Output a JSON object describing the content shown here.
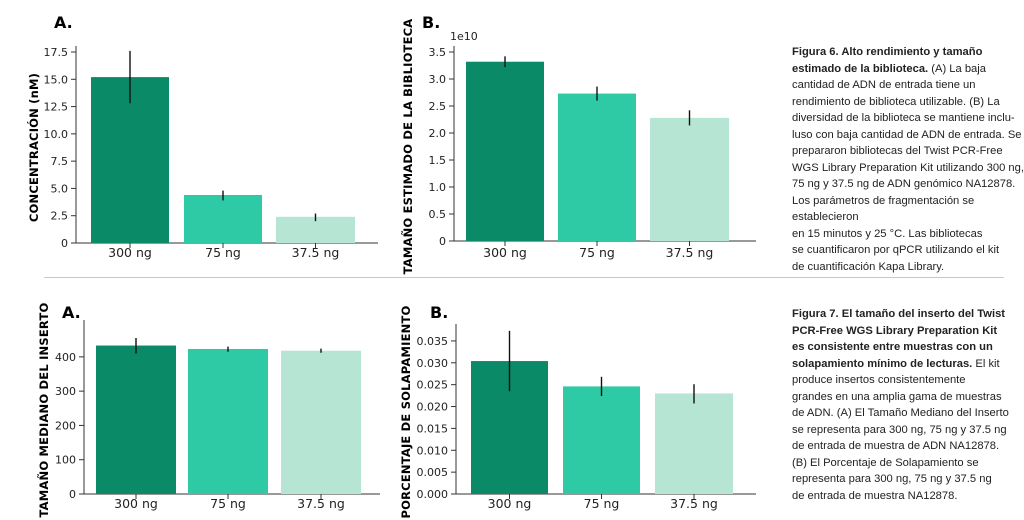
{
  "colors": {
    "bar1": "#0a8a67",
    "bar2": "#2ec9a5",
    "bar3": "#b6e6d3",
    "axis": "#333333",
    "error": "#111111"
  },
  "chart_data": [
    {
      "id": "fig6a",
      "type": "bar",
      "panel": "A.",
      "ylabel": "CONCENTRACIÓN (nM)",
      "categories": [
        "300 ng",
        "75 ng",
        "37.5 ng"
      ],
      "values": [
        15.2,
        4.4,
        2.4
      ],
      "errors": [
        [
          12.8,
          17.6
        ],
        [
          3.9,
          4.8
        ],
        [
          2.0,
          2.7
        ]
      ],
      "ylim": [
        0,
        17.5
      ],
      "yticks": [
        0,
        2.5,
        5.0,
        7.5,
        10.0,
        12.5,
        15.0,
        17.5
      ],
      "ytick_labels": [
        "0",
        "2.5",
        "5.0",
        "7.5",
        "10.0",
        "12.5",
        "15.0",
        "17.5"
      ]
    },
    {
      "id": "fig6b",
      "type": "bar",
      "panel": "B.",
      "ylabel": "TAMAÑO ESTIMADO DE LA BIBLIOTECA",
      "scale_note": "1e10",
      "categories": [
        "300 ng",
        "75 ng",
        "37.5 ng"
      ],
      "values": [
        3.32,
        2.73,
        2.28
      ],
      "errors": [
        [
          3.22,
          3.42
        ],
        [
          2.6,
          2.86
        ],
        [
          2.14,
          2.42
        ]
      ],
      "ylim": [
        0,
        3.5
      ],
      "yticks": [
        0,
        0.5,
        1.0,
        1.5,
        2.0,
        2.5,
        3.0,
        3.5
      ],
      "ytick_labels": [
        "0",
        "0.5",
        "1.0",
        "1.5",
        "2.0",
        "2.5",
        "3.0",
        "3.5"
      ]
    },
    {
      "id": "fig7a",
      "type": "bar",
      "panel": "A.",
      "ylabel": "TAMAÑO MEDIANO DEL INSERTO",
      "categories": [
        "300 ng",
        "75 ng",
        "37.5 ng"
      ],
      "values": [
        433,
        423,
        418
      ],
      "errors": [
        [
          410,
          455
        ],
        [
          415,
          430
        ],
        [
          412,
          424
        ]
      ],
      "ylim": [
        0,
        490
      ],
      "yticks": [
        0,
        100,
        200,
        300,
        400
      ],
      "ytick_labels": [
        "0",
        "100",
        "200",
        "300",
        "400"
      ]
    },
    {
      "id": "fig7b",
      "type": "bar",
      "panel": "B.",
      "ylabel": "PORCENTAJE DE SOLAPAMIENTO",
      "categories": [
        "300 ng",
        "75 ng",
        "37.5 ng"
      ],
      "values": [
        0.0304,
        0.0246,
        0.023
      ],
      "errors": [
        [
          0.0235,
          0.0373
        ],
        [
          0.0224,
          0.0268
        ],
        [
          0.0207,
          0.0251
        ]
      ],
      "ylim": [
        0,
        0.0375
      ],
      "yticks": [
        0,
        0.005,
        0.01,
        0.015,
        0.02,
        0.025,
        0.03,
        0.035
      ],
      "ytick_labels": [
        "0.000",
        "0.005",
        "0.010",
        "0.015",
        "0.020",
        "0.025",
        "0.030",
        "0.035"
      ]
    }
  ],
  "captions": {
    "fig6": {
      "bold": "Figura 6. Alto rendimiento y tamaño\nestimado de la biblioteca.",
      "text": " (A) La baja\ncantidad de ADN de entrada tiene un\nrendimiento de biblioteca utilizable. (B) La\ndiversidad de la biblioteca se mantiene inclu-\nluso  con baja cantidad de ADN de entrada. Se\nprepararon bibliotecas del Twist PCR-Free\nWGS Library Preparation Kit utilizando 300 ng,\n75 ng y 37.5 ng de ADN genómico NA12878.\nLos parámetros de fragmentación se establecieron\nen 15 minutos y 25 °C. Las bibliotecas\nse cuantificaron por qPCR utilizando el kit\nde cuantificación Kapa Library."
    },
    "fig7": {
      "bold": "Figura 7. El tamaño del inserto del Twist\nPCR-Free WGS Library Preparation Kit\nes consistente entre muestras con un\nsolapamiento mínimo de lecturas.",
      "text": " El kit\nproduce insertos consistentemente\ngrandes en una amplia gama de muestras\nde ADN. (A) El Tamaño Mediano del Inserto\nse representa para 300 ng, 75 ng y 37.5 ng\nde entrada de muestra de ADN NA12878.\n(B) El Porcentaje de Solapamiento se\nrepresenta para 300 ng, 75 ng y 37.5 ng\nde entrada de muestra NA12878."
    }
  }
}
